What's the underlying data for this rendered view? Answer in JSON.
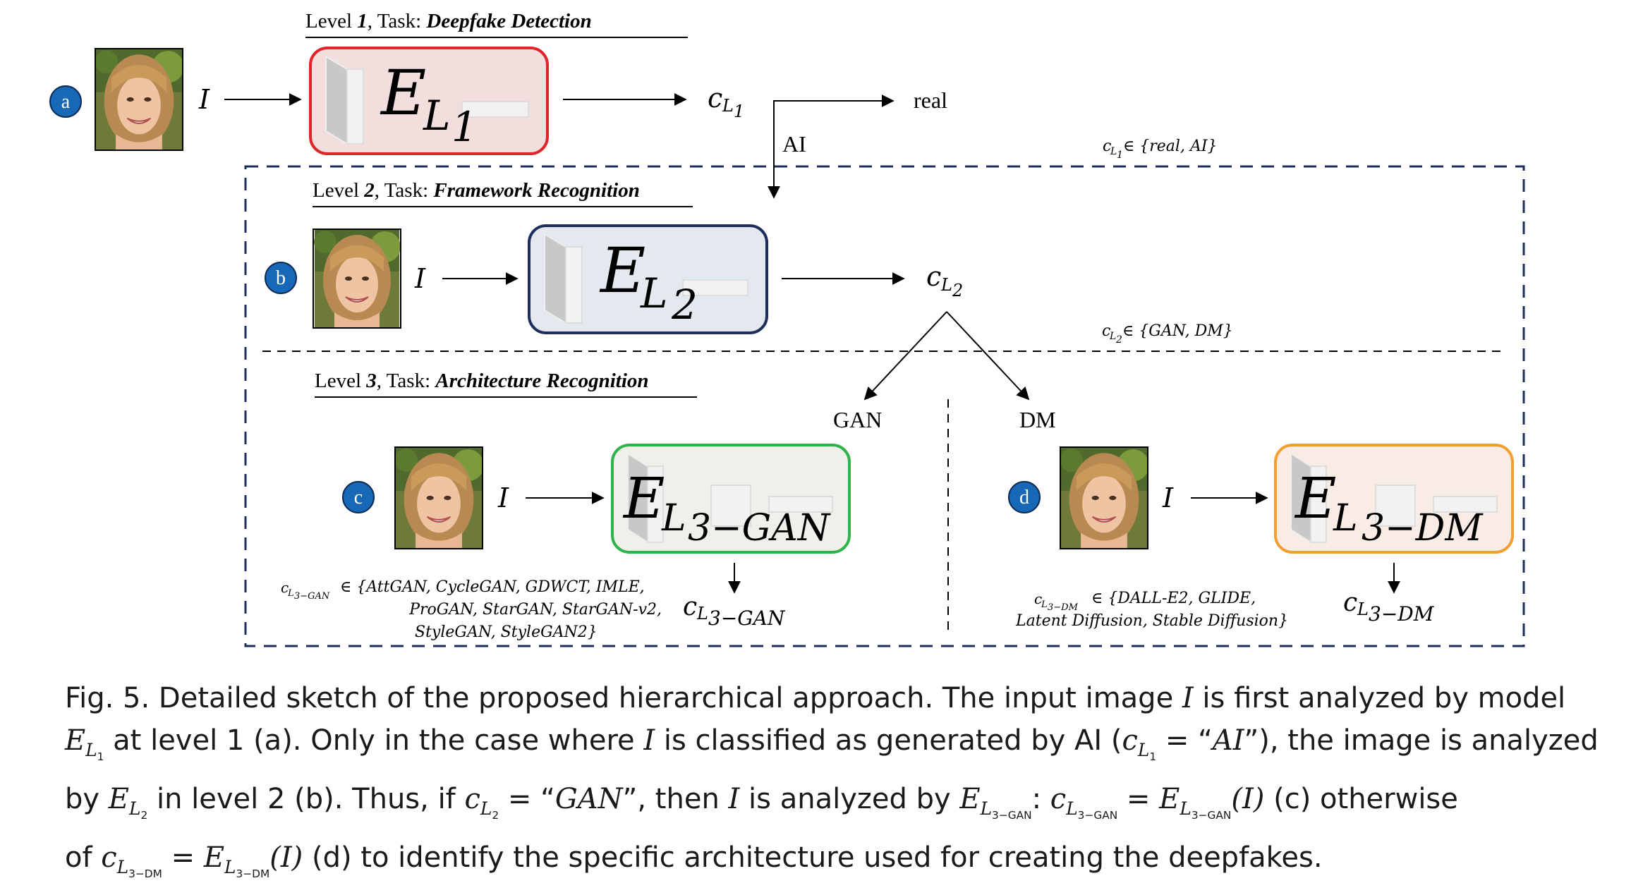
{
  "colors": {
    "level1_border": "#e0242a",
    "level1_fill": "#f3dede",
    "level2_border": "#1d2d5c",
    "level2_fill": "#e4e9f0",
    "level3_gan_border": "#2db34a",
    "level3_gan_fill": "#eef0e9",
    "level3_dm_border": "#f0a030",
    "level3_dm_fill": "#f9ece4",
    "circle_badge": "#1768b7",
    "dashed_frame": "#1d2d5c"
  },
  "level1": {
    "heading_prefix": "Level ",
    "heading_num": "1",
    "heading_mid": ", Task: ",
    "heading_task": "Deepfake Detection",
    "badge": "a",
    "input": "I",
    "model_main": "E",
    "model_sub": "L",
    "model_subsub": "1",
    "output_c": "c",
    "output_sub": "L",
    "output_subsub": "1",
    "branch_real": "real",
    "branch_ai": "AI",
    "set_c": "c",
    "set_sub": "L",
    "set_subsub": "1",
    "set_text": " ∈ {real, AI}"
  },
  "level2": {
    "heading_prefix": "Level ",
    "heading_num": "2",
    "heading_mid": ", Task: ",
    "heading_task": "Framework Recognition",
    "badge": "b",
    "input": "I",
    "model_main": "E",
    "model_sub": "L",
    "model_subsub": "2",
    "output_c": "c",
    "output_sub": "L",
    "output_subsub": "2",
    "set_c": "c",
    "set_sub": "L",
    "set_subsub": "2",
    "set_text": " ∈ {GAN, DM}"
  },
  "level3": {
    "heading_prefix": "Level ",
    "heading_num": "3",
    "heading_mid": ", Task: ",
    "heading_task": "Architecture Recognition",
    "branch_gan": "GAN",
    "branch_dm": "DM",
    "gan": {
      "badge": "c",
      "input": "I",
      "model_main": "E",
      "model_sub": "L",
      "model_subsub": "3−GAN",
      "output_c": "c",
      "output_sub": "L",
      "output_subsub": "3−GAN",
      "set_c": "c",
      "set_sub": "L",
      "set_subsub": "3−GAN",
      "set_line1": " ∈ {AttGAN, CycleGAN, GDWCT, IMLE,",
      "set_line2": "ProGAN, StarGAN, StarGAN-v2,",
      "set_line3": "StyleGAN, StyleGAN2}"
    },
    "dm": {
      "badge": "d",
      "input": "I",
      "model_main": "E",
      "model_sub": "L",
      "model_subsub": "3−DM",
      "output_c": "c",
      "output_sub": "L",
      "output_subsub": "3−DM",
      "set_c": "c",
      "set_sub": "L",
      "set_subsub": "3−DM",
      "set_line1": " ∈ {DALL-E2, GLIDE,",
      "set_line2": "Latent Diffusion, Stable Diffusion}"
    }
  },
  "caption": {
    "l1_a": "Fig. 5.  Detailed sketch of the proposed hierarchical approach. The input image ",
    "l1_I": "I",
    "l1_b": " is first analyzed by model",
    "l2_E": "E",
    "l2_Esub": "L",
    "l2_Esubsub": "1",
    "l2_a": " at level 1 (a). Only in the case where ",
    "l2_I": "I",
    "l2_b": " is classified as generated by AI (",
    "l2_c": "c",
    "l2_csub": "L",
    "l2_csubsub": "1",
    "l2_eq": " = “",
    "l2_AI": "AI",
    "l2_c2": "”), the image is analyzed",
    "l3_a": "by ",
    "l3_E": "E",
    "l3_Esub": "L",
    "l3_Esubsub": "2",
    "l3_b": " in level 2 (b). Thus, if ",
    "l3_c": "c",
    "l3_csub": "L",
    "l3_csubsub": "2",
    "l3_eq": " = “",
    "l3_GAN": "GAN",
    "l3_c2": "”, then ",
    "l3_I": "I",
    "l3_d": " is analyzed by ",
    "l3_E2": "E",
    "l3_E2sub": "L",
    "l3_E2subsub": "3−GAN",
    "l3_colon": ": ",
    "l3_c3": "c",
    "l3_c3sub": "L",
    "l3_c3subsub": "3−GAN",
    "l3_eq2": " = ",
    "l3_E3": "E",
    "l3_E3sub": "L",
    "l3_E3subsub": "3−GAN",
    "l3_paren": "(I)",
    "l3_e": " (c) otherwise",
    "l4_a": "of ",
    "l4_c": "c",
    "l4_csub": "L",
    "l4_csubsub": "3−DM",
    "l4_eq": " = ",
    "l4_E": "E",
    "l4_Esub": "L",
    "l4_Esubsub": "3−DM",
    "l4_paren": "(I)",
    "l4_b": " (d) to identify the specific architecture used for creating the deepfakes."
  }
}
